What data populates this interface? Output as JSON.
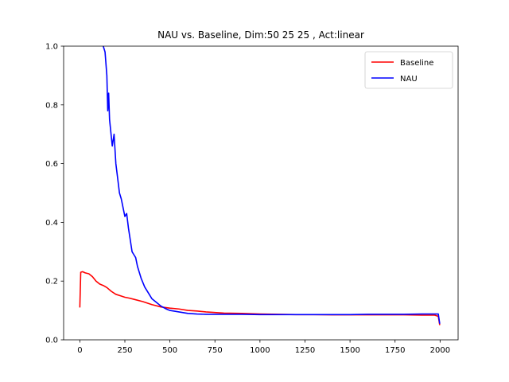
{
  "chart_data": {
    "type": "line",
    "title": "NAU vs. Baseline, Dim:50 25 25 , Act:linear",
    "xlabel": "",
    "ylabel": "",
    "xlim": [
      -90,
      2100
    ],
    "ylim": [
      0,
      1
    ],
    "x_ticks": [
      0,
      250,
      500,
      750,
      1000,
      1250,
      1500,
      1750,
      2000
    ],
    "y_ticks": [
      0.0,
      0.2,
      0.4,
      0.6,
      0.8,
      1.0
    ],
    "x_tick_labels": [
      "0",
      "250",
      "500",
      "750",
      "1000",
      "1250",
      "1500",
      "1750",
      "2000"
    ],
    "y_tick_labels": [
      "0.0",
      "0.2",
      "0.4",
      "0.6",
      "0.8",
      "1.0"
    ],
    "grid": false,
    "legend_position": "top-right",
    "series": [
      {
        "name": "Baseline",
        "color": "#ff0000",
        "x": [
          0,
          5,
          15,
          30,
          50,
          70,
          90,
          110,
          130,
          150,
          175,
          200,
          225,
          250,
          275,
          300,
          350,
          400,
          450,
          500,
          550,
          600,
          650,
          700,
          750,
          800,
          900,
          1000,
          1100,
          1200,
          1300,
          1400,
          1500,
          1600,
          1700,
          1800,
          1900,
          1970,
          1990,
          1998
        ],
        "y": [
          0.11,
          0.23,
          0.232,
          0.228,
          0.225,
          0.215,
          0.2,
          0.19,
          0.185,
          0.178,
          0.165,
          0.155,
          0.15,
          0.145,
          0.142,
          0.138,
          0.13,
          0.12,
          0.112,
          0.108,
          0.105,
          0.1,
          0.098,
          0.095,
          0.093,
          0.091,
          0.09,
          0.088,
          0.087,
          0.086,
          0.086,
          0.085,
          0.085,
          0.085,
          0.085,
          0.085,
          0.084,
          0.084,
          0.08,
          0.05
        ]
      },
      {
        "name": "NAU",
        "color": "#0000ff",
        "x": [
          130,
          140,
          150,
          155,
          160,
          165,
          170,
          180,
          190,
          200,
          210,
          220,
          230,
          240,
          250,
          260,
          270,
          280,
          290,
          300,
          310,
          320,
          340,
          360,
          380,
          400,
          420,
          450,
          480,
          500,
          550,
          600,
          650,
          700,
          750,
          800,
          900,
          1000,
          1100,
          1200,
          1300,
          1400,
          1500,
          1600,
          1700,
          1800,
          1900,
          1970,
          1990,
          1998
        ],
        "y": [
          1.0,
          0.98,
          0.9,
          0.78,
          0.84,
          0.75,
          0.72,
          0.66,
          0.7,
          0.6,
          0.55,
          0.5,
          0.48,
          0.45,
          0.42,
          0.43,
          0.38,
          0.34,
          0.3,
          0.29,
          0.28,
          0.25,
          0.21,
          0.18,
          0.16,
          0.14,
          0.13,
          0.115,
          0.105,
          0.1,
          0.095,
          0.09,
          0.088,
          0.087,
          0.087,
          0.087,
          0.087,
          0.086,
          0.086,
          0.086,
          0.086,
          0.086,
          0.086,
          0.087,
          0.087,
          0.087,
          0.088,
          0.088,
          0.088,
          0.055
        ]
      }
    ]
  }
}
